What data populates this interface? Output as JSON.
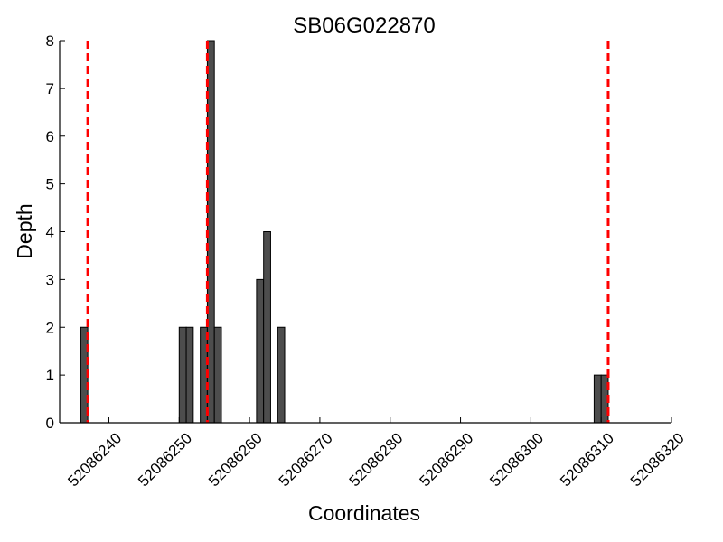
{
  "chart_data": {
    "type": "bar",
    "title": "SB06G022870",
    "xlabel": "Coordinates",
    "ylabel": "Depth",
    "xlim": [
      52086233,
      52086320
    ],
    "ylim": [
      0,
      8
    ],
    "xticks": [
      52086240,
      52086250,
      52086260,
      52086270,
      52086280,
      52086290,
      52086300,
      52086310,
      52086320
    ],
    "yticks": [
      0,
      1,
      2,
      3,
      4,
      5,
      6,
      7,
      8
    ],
    "grid": false,
    "bar_width": 1,
    "series": [
      {
        "x": [
          52086236,
          52086250,
          52086251,
          52086253,
          52086254,
          52086255,
          52086261,
          52086262,
          52086264,
          52086309,
          52086310
        ],
        "values": [
          2,
          2,
          2,
          2,
          8,
          2,
          3,
          4,
          2,
          1,
          1
        ]
      }
    ],
    "vlines": [
      52086237,
      52086254,
      52086311
    ],
    "colors": {
      "bar_fill": "#4d4d4d",
      "bar_edge": "#000000",
      "vline": "#ff0000"
    }
  }
}
